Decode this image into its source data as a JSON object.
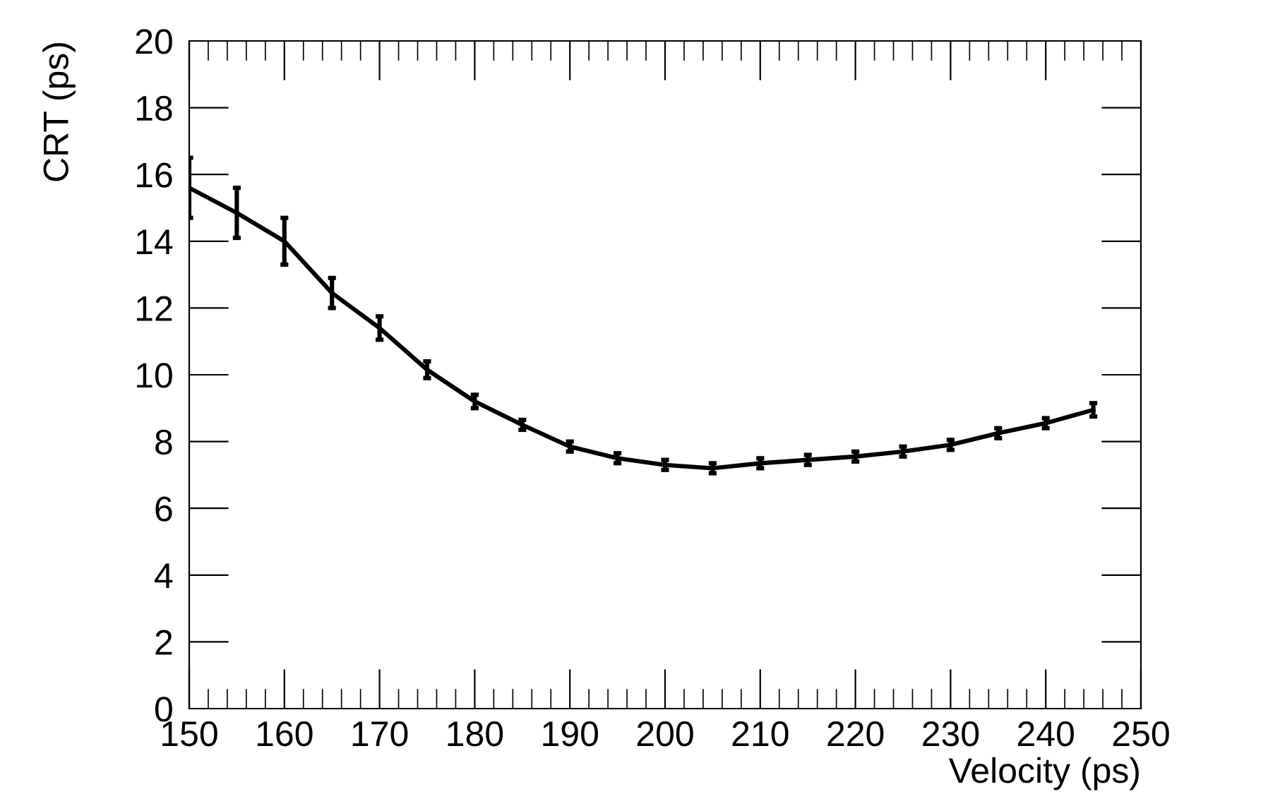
{
  "chart_data": {
    "type": "line",
    "xlabel": "Velocity (ps)",
    "ylabel": "CRT (ps)",
    "x": [
      150,
      155,
      160,
      165,
      170,
      175,
      180,
      185,
      190,
      195,
      200,
      205,
      210,
      215,
      220,
      225,
      230,
      235,
      240,
      245
    ],
    "series": [
      {
        "color": "#000000",
        "values": [
          15.6,
          14.85,
          14.0,
          12.45,
          11.4,
          10.15,
          9.2,
          8.5,
          7.85,
          7.5,
          7.3,
          7.2,
          7.35,
          7.45,
          7.55,
          7.7,
          7.9,
          8.25,
          8.55,
          8.95
        ],
        "errors": [
          0.9,
          0.75,
          0.7,
          0.45,
          0.35,
          0.25,
          0.2,
          0.15,
          0.15,
          0.15,
          0.15,
          0.15,
          0.15,
          0.15,
          0.15,
          0.15,
          0.15,
          0.15,
          0.15,
          0.2
        ]
      }
    ],
    "xlim": [
      150,
      250
    ],
    "xticks": [
      150,
      160,
      170,
      180,
      190,
      200,
      210,
      220,
      230,
      240,
      250
    ],
    "ylim": [
      0,
      20
    ],
    "yticks": [
      0,
      2,
      4,
      6,
      8,
      10,
      12,
      14,
      16,
      18,
      20
    ],
    "grid": false,
    "legend": false,
    "marker": "none",
    "line_style": "solid"
  }
}
